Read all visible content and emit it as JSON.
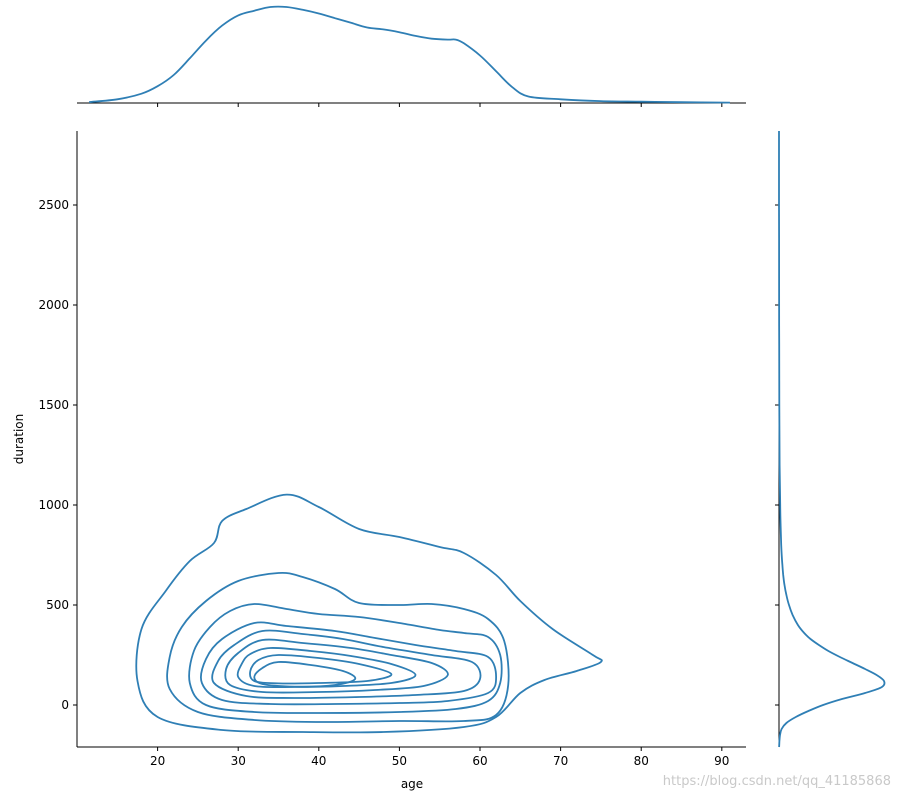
{
  "chart_data": {
    "type": "kde_jointplot",
    "xlabel": "age",
    "ylabel": "duration",
    "xlim": [
      10,
      93
    ],
    "ylim": [
      -210,
      2870
    ],
    "x_ticks": [
      20,
      30,
      40,
      50,
      60,
      70,
      80,
      90
    ],
    "y_ticks": [
      0,
      500,
      1000,
      1500,
      2000,
      2500
    ],
    "colors": {
      "line": "#2f7fb5"
    },
    "contours": [
      [
        [
          36,
          1052
        ],
        [
          40,
          990
        ],
        [
          45,
          880
        ],
        [
          50,
          840
        ],
        [
          55,
          790
        ],
        [
          58,
          760
        ],
        [
          62,
          650
        ],
        [
          65,
          520
        ],
        [
          69,
          380
        ],
        [
          74,
          250
        ],
        [
          75,
          215
        ],
        [
          72,
          170
        ],
        [
          68,
          125
        ],
        [
          65,
          60
        ],
        [
          62,
          -60
        ],
        [
          58,
          -110
        ],
        [
          48,
          -135
        ],
        [
          38,
          -135
        ],
        [
          28,
          -125
        ],
        [
          20,
          -60
        ],
        [
          17.5,
          120
        ],
        [
          18,
          380
        ],
        [
          21,
          570
        ],
        [
          24,
          720
        ],
        [
          27,
          810
        ],
        [
          28,
          920
        ],
        [
          31,
          980
        ]
      ],
      [
        [
          35,
          660
        ],
        [
          38,
          640
        ],
        [
          42,
          580
        ],
        [
          45,
          510
        ],
        [
          50,
          500
        ],
        [
          54,
          505
        ],
        [
          58,
          480
        ],
        [
          61,
          430
        ],
        [
          63,
          320
        ],
        [
          63.5,
          100
        ],
        [
          62,
          -50
        ],
        [
          58,
          -80
        ],
        [
          50,
          -80
        ],
        [
          40,
          -85
        ],
        [
          32,
          -75
        ],
        [
          25,
          -35
        ],
        [
          21.5,
          80
        ],
        [
          21.5,
          240
        ],
        [
          23,
          390
        ],
        [
          26,
          520
        ],
        [
          30,
          620
        ]
      ],
      [
        [
          32,
          505
        ],
        [
          36,
          480
        ],
        [
          40,
          455
        ],
        [
          45,
          440
        ],
        [
          50,
          410
        ],
        [
          55,
          375
        ],
        [
          58,
          360
        ],
        [
          61,
          340
        ],
        [
          62.5,
          250
        ],
        [
          62.5,
          110
        ],
        [
          61,
          20
        ],
        [
          57,
          -20
        ],
        [
          50,
          -35
        ],
        [
          40,
          -40
        ],
        [
          32,
          -35
        ],
        [
          26,
          0
        ],
        [
          24,
          110
        ],
        [
          24.5,
          270
        ],
        [
          26.5,
          390
        ],
        [
          29,
          470
        ]
      ],
      [
        [
          32,
          410
        ],
        [
          36,
          395
        ],
        [
          42,
          370
        ],
        [
          47,
          335
        ],
        [
          52,
          300
        ],
        [
          57,
          270
        ],
        [
          61,
          240
        ],
        [
          62,
          140
        ],
        [
          61,
          60
        ],
        [
          56,
          20
        ],
        [
          50,
          10
        ],
        [
          42,
          5
        ],
        [
          34,
          5
        ],
        [
          28,
          25
        ],
        [
          25.5,
          110
        ],
        [
          26,
          230
        ],
        [
          28,
          330
        ]
      ],
      [
        [
          33,
          370
        ],
        [
          38,
          355
        ],
        [
          43,
          330
        ],
        [
          48,
          290
        ],
        [
          54,
          250
        ],
        [
          59,
          215
        ],
        [
          60,
          130
        ],
        [
          58,
          70
        ],
        [
          52,
          50
        ],
        [
          45,
          40
        ],
        [
          37,
          35
        ],
        [
          31,
          45
        ],
        [
          27,
          110
        ],
        [
          27.5,
          220
        ],
        [
          29.5,
          300
        ]
      ],
      [
        [
          33,
          325
        ],
        [
          38,
          310
        ],
        [
          44,
          285
        ],
        [
          49,
          250
        ],
        [
          54,
          210
        ],
        [
          56,
          150
        ],
        [
          53,
          95
        ],
        [
          47,
          75
        ],
        [
          40,
          65
        ],
        [
          33,
          65
        ],
        [
          29,
          100
        ],
        [
          28.5,
          180
        ],
        [
          30,
          260
        ]
      ],
      [
        [
          34,
          285
        ],
        [
          39,
          270
        ],
        [
          44,
          245
        ],
        [
          49,
          205
        ],
        [
          52,
          150
        ],
        [
          49,
          110
        ],
        [
          43,
          95
        ],
        [
          37,
          90
        ],
        [
          32,
          95
        ],
        [
          30,
          140
        ],
        [
          30.5,
          210
        ],
        [
          31.5,
          255
        ]
      ],
      [
        [
          35,
          250
        ],
        [
          40,
          235
        ],
        [
          45,
          205
        ],
        [
          49,
          155
        ],
        [
          46,
          120
        ],
        [
          40,
          110
        ],
        [
          35,
          108
        ],
        [
          32,
          120
        ],
        [
          31.5,
          170
        ],
        [
          32.5,
          225
        ]
      ],
      [
        [
          35,
          215
        ],
        [
          39,
          200
        ],
        [
          43,
          170
        ],
        [
          44.5,
          130
        ],
        [
          42,
          100
        ],
        [
          37,
          92
        ],
        [
          33,
          105
        ],
        [
          32,
          140
        ],
        [
          33,
          185
        ]
      ]
    ],
    "marginal_x": {
      "x": [
        11.5,
        15,
        18,
        20,
        22,
        24,
        26,
        28,
        30,
        32,
        34,
        36,
        38,
        40,
        42,
        44,
        46,
        48,
        50,
        52,
        54,
        56,
        57,
        58,
        60,
        62,
        64,
        66,
        70,
        75,
        80,
        85,
        91
      ],
      "density": [
        0.001,
        0.004,
        0.01,
        0.018,
        0.03,
        0.048,
        0.067,
        0.083,
        0.094,
        0.099,
        0.103,
        0.103,
        0.1,
        0.096,
        0.091,
        0.086,
        0.081,
        0.079,
        0.076,
        0.072,
        0.069,
        0.068,
        0.068,
        0.064,
        0.051,
        0.034,
        0.017,
        0.007,
        0.004,
        0.002,
        0.0014,
        0.0009,
        0.0004
      ]
    },
    "marginal_y": {
      "y": [
        -210,
        -180,
        -150,
        -120,
        -90,
        -60,
        -30,
        0,
        30,
        60,
        90,
        120,
        150,
        180,
        210,
        240,
        270,
        300,
        330,
        360,
        400,
        450,
        500,
        550,
        600,
        650,
        700,
        750,
        800,
        900,
        1000,
        1200,
        1500,
        1800,
        2100,
        2500,
        2870
      ],
      "density": [
        0.001,
        0.004,
        0.01,
        0.025,
        0.07,
        0.16,
        0.28,
        0.42,
        0.6,
        0.82,
        0.98,
        1.0,
        0.93,
        0.82,
        0.7,
        0.58,
        0.47,
        0.38,
        0.3,
        0.24,
        0.18,
        0.13,
        0.095,
        0.07,
        0.052,
        0.04,
        0.032,
        0.026,
        0.021,
        0.015,
        0.011,
        0.006,
        0.003,
        0.0015,
        0.0008,
        0.0004,
        0.0002
      ]
    }
  },
  "watermark": "https://blog.csdn.net/qq_41185868"
}
